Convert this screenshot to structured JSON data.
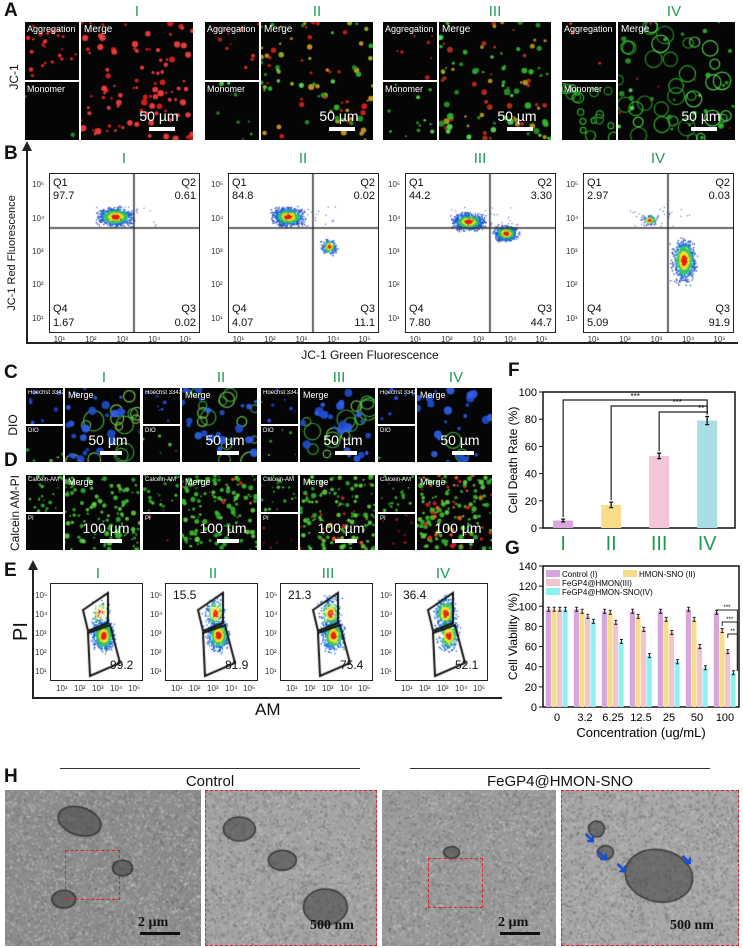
{
  "groups": [
    "I",
    "II",
    "III",
    "IV"
  ],
  "colors": {
    "roman": "#1f9a55",
    "series": [
      "#d8a6dc",
      "#f8dc8a",
      "#f3c4cf",
      "#8ef0f0"
    ],
    "F_bars": [
      "#d8a6dc",
      "#f8dc8a",
      "#f2c5d8",
      "#a9dde3"
    ],
    "gate": "#111111",
    "tem_box": "#dd2222"
  },
  "A": {
    "label": "A",
    "row_label": "JC-1",
    "inset_top": "Aggregation",
    "inset_bottom": "Monomer",
    "merge": "Merge",
    "scale": "50 µm"
  },
  "B": {
    "label": "B",
    "ylabel": "JC-1 Red Fluorescence",
    "xlabel": "JC-1 Green Fluorescence",
    "ticks": [
      "10¹",
      "10²",
      "10³",
      "10⁴",
      "10⁵"
    ],
    "plots": [
      {
        "group": "I",
        "Q1": "97.7",
        "Q2": "0.61",
        "Q3": "0.02",
        "Q4": "1.67"
      },
      {
        "group": "II",
        "Q1": "84.8",
        "Q2": "0.02",
        "Q3": "11.1",
        "Q4": "4.07"
      },
      {
        "group": "III",
        "Q1": "44.2",
        "Q2": "3.30",
        "Q3": "44.7",
        "Q4": "7.80"
      },
      {
        "group": "IV",
        "Q1": "2.97",
        "Q2": "0.03",
        "Q3": "91.9",
        "Q4": "5.09"
      }
    ],
    "quadrant_names": [
      "Q1",
      "Q2",
      "Q3",
      "Q4"
    ]
  },
  "C": {
    "label": "C",
    "row_label": "DIO",
    "inset_top": "Hoechst 3342",
    "inset_bottom": "DIO",
    "merge": "Merge",
    "scale": "50 µm"
  },
  "D": {
    "label": "D",
    "row_label": "Calcein AM-PI",
    "inset_top": "Calcein-AM",
    "inset_bottom": "PI",
    "merge": "Merge",
    "scale": "100 µm"
  },
  "E": {
    "label": "E",
    "ylabel": "PI",
    "xlabel": "AM",
    "ticks": [
      "10¹",
      "10²",
      "10³",
      "10⁴",
      "10⁵"
    ],
    "plots": [
      {
        "group": "I",
        "upper": "",
        "lower": "99.2"
      },
      {
        "group": "II",
        "upper": "15.5",
        "lower": "81.9"
      },
      {
        "group": "III",
        "upper": "21.3",
        "lower": "75.4"
      },
      {
        "group": "IV",
        "upper": "36.4",
        "lower": "52.1"
      }
    ]
  },
  "chart_data": [
    {
      "panel": "F",
      "type": "bar",
      "categories": [
        "I",
        "II",
        "III",
        "IV"
      ],
      "values": [
        5.5,
        17,
        53,
        79
      ],
      "errors": [
        1,
        2,
        2,
        3
      ],
      "ylabel": "Cell Death Rate (%)",
      "ylim": [
        0,
        100
      ],
      "yticks": [
        "0",
        "20",
        "40",
        "60",
        "80",
        "100"
      ],
      "significance": [
        {
          "from": "I",
          "to": "IV",
          "mark": "***"
        },
        {
          "from": "II",
          "to": "IV",
          "mark": "***"
        },
        {
          "from": "III",
          "to": "IV",
          "mark": "**"
        }
      ],
      "grid": false
    },
    {
      "panel": "G",
      "type": "bar",
      "categories": [
        "0",
        "3.2",
        "6.25",
        "12.5",
        "25",
        "50",
        "100"
      ],
      "xlabel": "Concentration (ug/mL)",
      "ylabel": "Cell Viability (%)",
      "ylim": [
        0,
        140
      ],
      "yticks": [
        "0",
        "20",
        "40",
        "60",
        "80",
        "100",
        "120",
        "140"
      ],
      "series": [
        {
          "name": "Control (I)",
          "values": [
            97,
            97,
            95,
            95,
            95,
            97,
            94
          ]
        },
        {
          "name": "HMON-SNO (II)",
          "values": [
            97,
            95,
            94,
            90,
            87,
            87,
            76
          ]
        },
        {
          "name": "FeGP4@HMON(III)",
          "values": [
            97,
            90,
            84,
            77,
            74,
            60,
            55
          ]
        },
        {
          "name": "FeGP4@HMON-SNO(IV)",
          "values": [
            97,
            85,
            65,
            51,
            45,
            39,
            34
          ]
        }
      ],
      "significance": [
        {
          "group": "100",
          "mark": "***"
        },
        {
          "group": "100",
          "mark": "***"
        },
        {
          "group": "100",
          "mark": "**"
        }
      ],
      "legend": "top-left",
      "grid": false
    }
  ],
  "F": {
    "label": "F"
  },
  "G": {
    "label": "G"
  },
  "H": {
    "label": "H",
    "left_title": "Control",
    "right_title": "FeGP4@HMON-SNO",
    "scale_low": "2 µm",
    "scale_high": "500 nm"
  }
}
